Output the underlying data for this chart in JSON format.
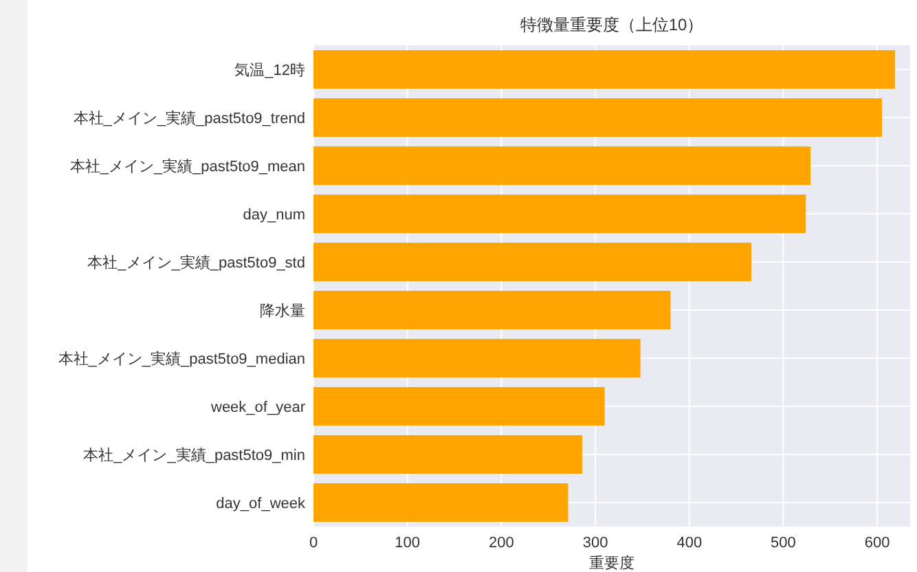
{
  "chart_data": {
    "type": "bar",
    "orientation": "horizontal",
    "title": "特徴量重要度（上位10）",
    "xlabel": "重要度",
    "categories": [
      "気温_12時",
      "本社_メイン_実績_past5to9_trend",
      "本社_メイン_実績_past5to9_mean",
      "day_num",
      "本社_メイン_実績_past5to9_std",
      "降水量",
      "本社_メイン_実績_past5to9_median",
      "week_of_year",
      "本社_メイン_実績_past5to9_min",
      "day_of_week"
    ],
    "values": [
      619,
      605,
      529,
      524,
      466,
      380,
      348,
      310,
      286,
      271
    ],
    "color": "#ffa500",
    "xlim": [
      0,
      635
    ],
    "xticks": [
      0,
      100,
      200,
      300,
      400,
      500,
      600
    ],
    "grid": true
  }
}
